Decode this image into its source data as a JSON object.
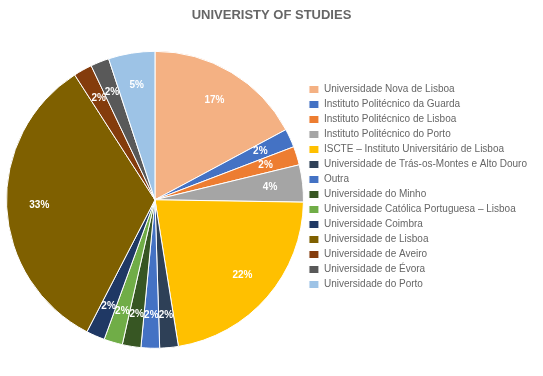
{
  "chart_data": {
    "type": "pie",
    "title": "UNIVERISTY OF STUDIES",
    "categories": [
      "Universidade Nova de Lisboa",
      "Instituto Politécnico da Guarda",
      "Instituto Politécnico de Lisboa",
      "Instituto Politécnico do Porto",
      "ISCTE – Instituto Universitário de Lisboa",
      "Universidade de Trás-os-Montes e Alto Douro",
      "Outra",
      "Universidade do Minho",
      "Universidade Católica Portuguesa – Lisboa",
      "Universidade Coimbra",
      "Universidade de Lisboa",
      "Universidade de Aveiro",
      "Universidade de Évora",
      "Universidade do Porto"
    ],
    "values": [
      17,
      2,
      2,
      4,
      22,
      2,
      2,
      2,
      2,
      2,
      33,
      2,
      2,
      5
    ],
    "value_labels": [
      "17%",
      "2%",
      "2%",
      "4%",
      "22%",
      "2%",
      "2%",
      "2%",
      "2%",
      "2%",
      "33%",
      "2%",
      "2%",
      "5%"
    ],
    "colors": [
      "#F4B183",
      "#4472C4",
      "#ED7D31",
      "#A5A5A5",
      "#FFC000",
      "#2E4057",
      "#4472C4",
      "#375623",
      "#70AD47",
      "#1F3864",
      "#7F6000",
      "#843C0C",
      "#595959",
      "#9DC3E6"
    ],
    "data_labels": true,
    "legend": "right"
  }
}
